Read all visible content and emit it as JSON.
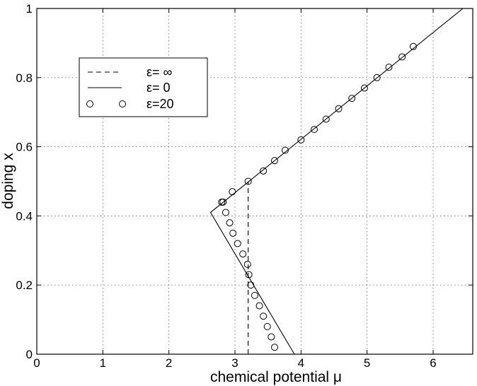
{
  "chart_data": {
    "type": "scatter",
    "xlabel": "chemical potential  μ",
    "ylabel": "doping x",
    "xlim": [
      0,
      6.6
    ],
    "ylim": [
      0,
      1
    ],
    "xticks": [
      0,
      1,
      2,
      3,
      4,
      5,
      6
    ],
    "yticks": [
      0,
      0.2,
      0.4,
      0.6,
      0.8,
      1
    ],
    "xtick_labels": [
      "0",
      "1",
      "2",
      "3",
      "4",
      "5",
      "6"
    ],
    "ytick_labels": [
      "0",
      "0.2",
      "0.4",
      "0.6",
      "0.8",
      "1"
    ],
    "grid": true,
    "legend_position": "top-left",
    "series": [
      {
        "name": "ε= ∞",
        "style": "dashed",
        "color": "#000000",
        "x": [
          3.2,
          3.2
        ],
        "y": [
          0,
          0.5
        ]
      },
      {
        "name": "ε= 0",
        "style": "solid",
        "color": "#000000",
        "x": [
          3.9,
          2.63,
          6.45
        ],
        "y": [
          0,
          0.41,
          1.0
        ]
      },
      {
        "name": "ε=20",
        "style": "circles",
        "color": "#000000",
        "x": [
          3.6,
          3.55,
          3.49,
          3.43,
          3.37,
          3.3,
          3.24,
          3.21,
          3.19,
          3.12,
          3.04,
          2.97,
          2.92,
          2.86,
          2.82,
          2.8,
          2.96,
          3.2,
          3.43,
          3.6,
          3.76,
          4.0,
          4.2,
          4.38,
          4.57,
          4.77,
          4.96,
          5.15,
          5.33,
          5.53,
          5.7
        ],
        "y": [
          0.02,
          0.05,
          0.08,
          0.11,
          0.14,
          0.17,
          0.2,
          0.23,
          0.26,
          0.29,
          0.32,
          0.35,
          0.38,
          0.41,
          0.44,
          0.44,
          0.47,
          0.5,
          0.53,
          0.56,
          0.59,
          0.62,
          0.65,
          0.68,
          0.71,
          0.74,
          0.77,
          0.8,
          0.83,
          0.86,
          0.89
        ]
      }
    ]
  }
}
